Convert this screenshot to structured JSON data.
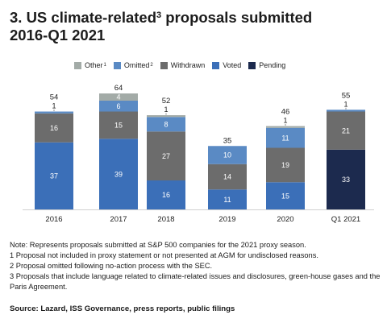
{
  "title": {
    "line1_a": "3. US climate-related",
    "line1_sup": "3",
    "line1_b": " proposals submitted",
    "line2": "2016-Q1 2021"
  },
  "legend": [
    {
      "label": "Other",
      "sup": "1",
      "color": "#a3aba7"
    },
    {
      "label": "Omitted",
      "sup": "2",
      "color": "#5a8ac4"
    },
    {
      "label": "Withdrawn",
      "sup": "",
      "color": "#6c6c6c"
    },
    {
      "label": "Voted",
      "sup": "",
      "color": "#3b6fb8"
    },
    {
      "label": "Pending",
      "sup": "",
      "color": "#1c2a4e"
    }
  ],
  "chart_data": {
    "type": "bar",
    "stacked": true,
    "categories": [
      "2016",
      "2017",
      "2018",
      "2019",
      "2020",
      "Q1 2021"
    ],
    "totals": [
      54,
      64,
      52,
      35,
      46,
      55
    ],
    "series": [
      {
        "name": "Voted",
        "color": "#3b6fb8",
        "values": [
          37,
          39,
          16,
          11,
          15,
          0
        ]
      },
      {
        "name": "Pending",
        "color": "#1c2a4e",
        "values": [
          0,
          0,
          0,
          0,
          0,
          33
        ]
      },
      {
        "name": "Withdrawn",
        "color": "#6c6c6c",
        "values": [
          16,
          15,
          27,
          14,
          19,
          21
        ]
      },
      {
        "name": "Omitted",
        "color": "#5a8ac4",
        "values": [
          1,
          6,
          8,
          10,
          11,
          1
        ]
      },
      {
        "name": "Other",
        "color": "#a3aba7",
        "values": [
          0,
          4,
          1,
          0,
          1,
          0
        ]
      }
    ],
    "labels": [
      [
        "37",
        null,
        "16",
        "1",
        null
      ],
      [
        "39",
        null,
        "15",
        "6",
        "4"
      ],
      [
        "16",
        null,
        "27",
        "8",
        "1"
      ],
      [
        "11",
        null,
        "14",
        "10",
        null
      ],
      [
        "15",
        null,
        "19",
        "11",
        "1"
      ],
      [
        null,
        "33",
        "21",
        "1",
        null
      ]
    ],
    "ylim": [
      0,
      64
    ],
    "grid": false,
    "legend_position": "top"
  },
  "notes": [
    "Note: Represents proposals submitted at S&P 500 companies for the 2021 proxy season.",
    "1 Proposal not included in proxy statement or not presented at AGM for undisclosed reasons.",
    "2 Proposal omitted following no-action process with the SEC.",
    "3 Proposals that include language related to climate-related issues and disclosures, green-house gases and the Paris Agreement."
  ],
  "source": "Source: Lazard, ISS Governance, press reports, public filings"
}
